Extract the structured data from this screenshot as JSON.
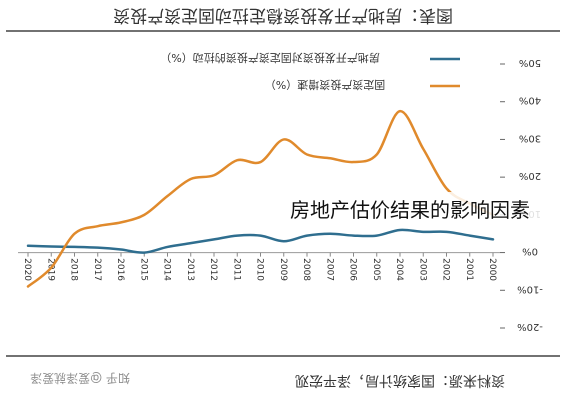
{
  "header": {
    "title": "图表：房地产开发投资稳定拉动固定资产投资"
  },
  "footer": {
    "source": "资料来源：国家统计局，泽平宏观",
    "watermark": "知乎 @爱泽就爱泽"
  },
  "overlay_caption": "房地产估价结果的影响因素",
  "chart_data": {
    "type": "line",
    "categories": [
      "2000",
      "2001",
      "2002",
      "2003",
      "2004",
      "2005",
      "2006",
      "2007",
      "2008",
      "2009",
      "2010",
      "2011",
      "2012",
      "2013",
      "2014",
      "2015",
      "2016",
      "2017",
      "2018",
      "2019",
      "2020"
    ],
    "series": [
      {
        "name": "房地产开发投资对固定资产投资的拉动（%）",
        "color": "#2f6e8f",
        "values": [
          3.5,
          4.5,
          5.5,
          5.5,
          6.0,
          4.5,
          4.5,
          5.0,
          4.5,
          3.0,
          4.5,
          4.5,
          3.5,
          2.5,
          1.5,
          0.0,
          0.8,
          1.3,
          1.5,
          1.6,
          1.8
        ]
      },
      {
        "name": "固定资产投资增速（%）",
        "color": "#e08a2c",
        "values": [
          10,
          13,
          17,
          27.5,
          37.5,
          26,
          24,
          25,
          26,
          30,
          24,
          24.5,
          20.5,
          19.5,
          15,
          10,
          8,
          7,
          5,
          -4,
          -9
        ]
      }
    ],
    "yticks": [
      "50%",
      "40%",
      "30%",
      "20%",
      "10%",
      "0%",
      "-10%",
      "-20%"
    ],
    "ylim": [
      -20,
      50
    ],
    "legend_position": "top"
  }
}
